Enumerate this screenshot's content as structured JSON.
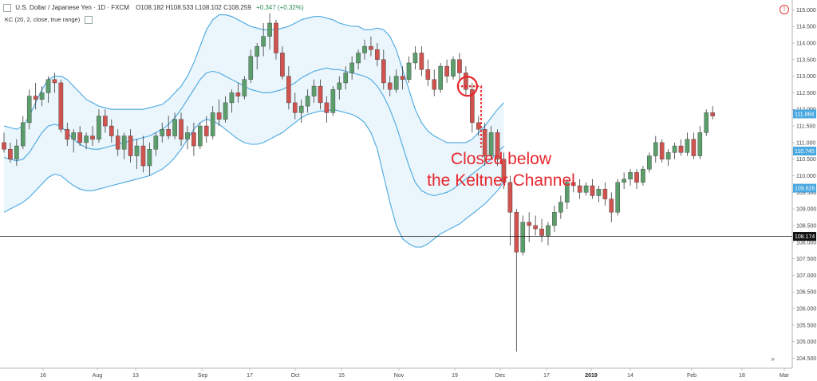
{
  "header": {
    "symbol": "U.S. Dollar / Japanese Yen · 1D · FXCM",
    "ohlc": "O108.182  H108.533  L108.102  C108.259",
    "change": "+0.347 (+0.32%)",
    "indicator": "KC (20, 2, close, true range)"
  },
  "annotation": {
    "line1": "Closed below",
    "line2": "the Keltner Channel"
  },
  "icons": [
    "chart-icon",
    "settings-icon",
    "info-icon",
    "scroll-right-icon"
  ],
  "colors": {
    "up": "#5b9e6b",
    "down": "#d0534f",
    "band": "#4aa8e0",
    "fill": "#eaf5fc",
    "annotation": "#e8272d",
    "current_price": "#111111"
  },
  "chart_data": {
    "type": "candlestick",
    "symbol": "USDJPY",
    "timeframe": "1D",
    "ylim": [
      104.2,
      115.2
    ],
    "y_ticks": [
      "115.000",
      "114.500",
      "114.000",
      "113.500",
      "113.000",
      "112.500",
      "112.000",
      "111.500",
      "111.000",
      "110.500",
      "110.000",
      "109.500",
      "109.000",
      "108.500",
      "108.000",
      "107.500",
      "107.000",
      "106.500",
      "106.000",
      "105.500",
      "105.000",
      "104.500"
    ],
    "x_labels": [
      "16",
      "Aug",
      "13",
      "Sep",
      "17",
      "Oct",
      "15",
      "Nov",
      "19",
      "Dec",
      "17",
      "2019",
      "14",
      "Feb",
      "18",
      "Mar"
    ],
    "price_labels": {
      "upper_band": "111.864",
      "middle_band": "110.745",
      "lower_band": "109.626",
      "last_price": "108.174"
    },
    "upper_band": [
      111.5,
      111.45,
      111.4,
      111.5,
      111.8,
      112.2,
      112.6,
      112.9,
      113.0,
      113.0,
      112.9,
      112.7,
      112.5,
      112.3,
      112.2,
      112.1,
      112.05,
      112.0,
      112.0,
      112.0,
      112.0,
      112.0,
      112.0,
      112.05,
      112.1,
      112.15,
      112.3,
      112.5,
      112.7,
      113.0,
      113.4,
      113.9,
      114.4,
      114.7,
      114.85,
      114.85,
      114.8,
      114.7,
      114.6,
      114.5,
      114.45,
      114.4,
      114.4,
      114.4,
      114.45,
      114.5,
      114.6,
      114.7,
      114.75,
      114.8,
      114.8,
      114.75,
      114.7,
      114.6,
      114.55,
      114.5,
      114.5,
      114.4,
      114.4,
      114.45,
      114.4,
      114.2,
      113.8,
      113.2,
      112.6,
      112.0,
      111.6,
      111.35,
      111.2,
      111.1,
      111.0,
      111.0,
      111.0,
      111.0,
      111.1,
      111.3,
      111.5,
      111.75,
      112.0,
      112.2
    ],
    "middle_band": [
      110.55,
      110.5,
      110.45,
      110.5,
      110.7,
      111.0,
      111.3,
      111.5,
      111.55,
      111.5,
      111.3,
      111.1,
      110.95,
      110.85,
      110.8,
      110.8,
      110.85,
      110.9,
      110.95,
      111.0,
      111.05,
      111.1,
      111.15,
      111.2,
      111.3,
      111.4,
      111.55,
      111.75,
      112.0,
      112.3,
      112.6,
      112.9,
      113.1,
      113.15,
      113.1,
      113.0,
      112.9,
      112.8,
      112.7,
      112.6,
      112.55,
      112.5,
      112.5,
      112.55,
      112.6,
      112.7,
      112.8,
      112.95,
      113.05,
      113.15,
      113.2,
      113.25,
      113.2,
      113.2,
      113.15,
      113.1,
      113.05,
      113.0,
      112.9,
      112.7,
      112.4,
      112.0,
      111.5,
      110.9,
      110.3,
      109.8,
      109.55,
      109.45,
      109.4,
      109.45,
      109.5,
      109.6,
      109.75,
      109.9,
      110.05,
      110.2,
      110.35,
      110.5,
      110.7,
      110.9
    ],
    "lower_band": [
      108.9,
      109.0,
      109.1,
      109.2,
      109.35,
      109.55,
      109.75,
      109.95,
      110.05,
      110.0,
      109.85,
      109.7,
      109.6,
      109.55,
      109.55,
      109.6,
      109.65,
      109.7,
      109.75,
      109.8,
      109.85,
      109.9,
      109.95,
      110.0,
      110.1,
      110.2,
      110.35,
      110.55,
      110.8,
      111.1,
      111.4,
      111.6,
      111.7,
      111.65,
      111.55,
      111.4,
      111.25,
      111.1,
      111.0,
      110.95,
      110.95,
      111.0,
      111.1,
      111.2,
      111.3,
      111.45,
      111.6,
      111.75,
      111.85,
      111.9,
      111.95,
      111.95,
      112.0,
      111.95,
      111.9,
      111.85,
      111.75,
      111.6,
      111.3,
      110.8,
      110.0,
      109.2,
      108.5,
      108.1,
      107.95,
      107.85,
      107.85,
      107.95,
      108.1,
      108.25,
      108.35,
      108.45,
      108.55,
      108.7,
      108.85,
      109.0,
      109.15,
      109.35,
      109.55,
      109.8
    ],
    "candles": [
      {
        "o": 111.0,
        "h": 111.3,
        "l": 110.7,
        "c": 110.8
      },
      {
        "o": 110.8,
        "h": 111.0,
        "l": 110.4,
        "c": 110.5
      },
      {
        "o": 110.5,
        "h": 111.1,
        "l": 110.3,
        "c": 110.9
      },
      {
        "o": 110.9,
        "h": 111.8,
        "l": 110.8,
        "c": 111.6
      },
      {
        "o": 111.6,
        "h": 112.6,
        "l": 111.4,
        "c": 112.4
      },
      {
        "o": 112.4,
        "h": 112.8,
        "l": 112.0,
        "c": 112.3
      },
      {
        "o": 112.3,
        "h": 112.7,
        "l": 112.1,
        "c": 112.5
      },
      {
        "o": 112.5,
        "h": 113.0,
        "l": 112.2,
        "c": 112.9
      },
      {
        "o": 112.9,
        "h": 113.1,
        "l": 112.5,
        "c": 112.8
      },
      {
        "o": 112.8,
        "h": 112.9,
        "l": 111.3,
        "c": 111.4
      },
      {
        "o": 111.4,
        "h": 111.6,
        "l": 110.9,
        "c": 111.1
      },
      {
        "o": 111.1,
        "h": 111.4,
        "l": 110.7,
        "c": 111.3
      },
      {
        "o": 111.3,
        "h": 111.5,
        "l": 110.9,
        "c": 111.0
      },
      {
        "o": 111.0,
        "h": 111.3,
        "l": 110.8,
        "c": 111.2
      },
      {
        "o": 111.2,
        "h": 111.5,
        "l": 110.9,
        "c": 111.1
      },
      {
        "o": 111.1,
        "h": 112.0,
        "l": 111.0,
        "c": 111.8
      },
      {
        "o": 111.8,
        "h": 112.0,
        "l": 111.3,
        "c": 111.5
      },
      {
        "o": 111.5,
        "h": 111.7,
        "l": 111.0,
        "c": 111.2
      },
      {
        "o": 111.2,
        "h": 111.4,
        "l": 110.6,
        "c": 110.8
      },
      {
        "o": 110.8,
        "h": 111.3,
        "l": 110.5,
        "c": 111.2
      },
      {
        "o": 111.2,
        "h": 111.4,
        "l": 110.4,
        "c": 110.6
      },
      {
        "o": 110.6,
        "h": 111.1,
        "l": 110.2,
        "c": 110.9
      },
      {
        "o": 110.9,
        "h": 111.2,
        "l": 110.1,
        "c": 110.3
      },
      {
        "o": 110.3,
        "h": 111.0,
        "l": 110.0,
        "c": 110.8
      },
      {
        "o": 110.8,
        "h": 111.3,
        "l": 110.6,
        "c": 111.2
      },
      {
        "o": 111.2,
        "h": 111.6,
        "l": 111.0,
        "c": 111.4
      },
      {
        "o": 111.4,
        "h": 111.8,
        "l": 111.1,
        "c": 111.2
      },
      {
        "o": 111.2,
        "h": 111.9,
        "l": 111.1,
        "c": 111.7
      },
      {
        "o": 111.7,
        "h": 111.9,
        "l": 110.9,
        "c": 111.1
      },
      {
        "o": 111.1,
        "h": 111.5,
        "l": 110.8,
        "c": 111.3
      },
      {
        "o": 111.3,
        "h": 111.6,
        "l": 110.6,
        "c": 110.9
      },
      {
        "o": 110.9,
        "h": 111.6,
        "l": 110.8,
        "c": 111.5
      },
      {
        "o": 111.5,
        "h": 111.8,
        "l": 111.0,
        "c": 111.2
      },
      {
        "o": 111.2,
        "h": 112.1,
        "l": 111.1,
        "c": 111.9
      },
      {
        "o": 111.9,
        "h": 112.3,
        "l": 111.5,
        "c": 111.7
      },
      {
        "o": 111.7,
        "h": 112.4,
        "l": 111.6,
        "c": 112.2
      },
      {
        "o": 112.2,
        "h": 112.6,
        "l": 111.9,
        "c": 112.5
      },
      {
        "o": 112.5,
        "h": 112.8,
        "l": 112.2,
        "c": 112.4
      },
      {
        "o": 112.4,
        "h": 113.0,
        "l": 112.3,
        "c": 112.9
      },
      {
        "o": 112.9,
        "h": 113.8,
        "l": 112.8,
        "c": 113.6
      },
      {
        "o": 113.6,
        "h": 114.0,
        "l": 113.2,
        "c": 113.9
      },
      {
        "o": 113.9,
        "h": 114.6,
        "l": 113.6,
        "c": 114.2
      },
      {
        "o": 114.2,
        "h": 114.9,
        "l": 113.8,
        "c": 114.6
      },
      {
        "o": 114.6,
        "h": 114.7,
        "l": 113.5,
        "c": 113.7
      },
      {
        "o": 113.7,
        "h": 113.9,
        "l": 112.9,
        "c": 113.0
      },
      {
        "o": 113.0,
        "h": 113.3,
        "l": 112.0,
        "c": 112.2
      },
      {
        "o": 112.2,
        "h": 112.5,
        "l": 111.7,
        "c": 111.9
      },
      {
        "o": 111.9,
        "h": 112.3,
        "l": 111.6,
        "c": 112.1
      },
      {
        "o": 112.1,
        "h": 112.6,
        "l": 111.9,
        "c": 112.4
      },
      {
        "o": 112.4,
        "h": 112.9,
        "l": 112.2,
        "c": 112.7
      },
      {
        "o": 112.7,
        "h": 112.9,
        "l": 112.0,
        "c": 112.2
      },
      {
        "o": 112.2,
        "h": 112.4,
        "l": 111.6,
        "c": 111.9
      },
      {
        "o": 111.9,
        "h": 112.7,
        "l": 111.8,
        "c": 112.6
      },
      {
        "o": 112.6,
        "h": 113.0,
        "l": 112.3,
        "c": 112.8
      },
      {
        "o": 112.8,
        "h": 113.3,
        "l": 112.6,
        "c": 113.1
      },
      {
        "o": 113.1,
        "h": 113.6,
        "l": 112.9,
        "c": 113.4
      },
      {
        "o": 113.4,
        "h": 113.8,
        "l": 113.2,
        "c": 113.7
      },
      {
        "o": 113.7,
        "h": 114.1,
        "l": 113.5,
        "c": 113.9
      },
      {
        "o": 113.9,
        "h": 114.2,
        "l": 113.6,
        "c": 113.8
      },
      {
        "o": 113.8,
        "h": 114.0,
        "l": 113.3,
        "c": 113.5
      },
      {
        "o": 113.5,
        "h": 113.8,
        "l": 112.6,
        "c": 112.8
      },
      {
        "o": 112.8,
        "h": 113.0,
        "l": 112.4,
        "c": 112.6
      },
      {
        "o": 112.6,
        "h": 113.2,
        "l": 112.5,
        "c": 113.0
      },
      {
        "o": 113.0,
        "h": 113.3,
        "l": 112.6,
        "c": 112.9
      },
      {
        "o": 112.9,
        "h": 113.6,
        "l": 112.8,
        "c": 113.4
      },
      {
        "o": 113.4,
        "h": 113.9,
        "l": 113.2,
        "c": 113.7
      },
      {
        "o": 113.7,
        "h": 113.9,
        "l": 113.0,
        "c": 113.2
      },
      {
        "o": 113.2,
        "h": 113.5,
        "l": 112.7,
        "c": 112.9
      },
      {
        "o": 112.9,
        "h": 113.2,
        "l": 112.4,
        "c": 112.6
      },
      {
        "o": 112.6,
        "h": 113.4,
        "l": 112.5,
        "c": 113.3
      },
      {
        "o": 113.3,
        "h": 113.5,
        "l": 112.8,
        "c": 113.0
      },
      {
        "o": 113.0,
        "h": 113.6,
        "l": 112.9,
        "c": 113.5
      },
      {
        "o": 113.5,
        "h": 113.7,
        "l": 112.9,
        "c": 113.1
      },
      {
        "o": 113.1,
        "h": 113.3,
        "l": 112.4,
        "c": 112.6
      },
      {
        "o": 112.6,
        "h": 112.8,
        "l": 111.3,
        "c": 111.6
      },
      {
        "o": 111.6,
        "h": 111.8,
        "l": 111.2,
        "c": 111.4
      },
      {
        "o": 111.4,
        "h": 111.6,
        "l": 110.3,
        "c": 110.6
      },
      {
        "o": 110.6,
        "h": 111.5,
        "l": 110.5,
        "c": 111.3
      },
      {
        "o": 111.3,
        "h": 111.4,
        "l": 110.3,
        "c": 110.5
      },
      {
        "o": 110.5,
        "h": 110.7,
        "l": 109.6,
        "c": 109.8
      },
      {
        "o": 109.8,
        "h": 110.0,
        "l": 107.9,
        "c": 108.9
      },
      {
        "o": 108.9,
        "h": 109.0,
        "l": 104.7,
        "c": 107.7
      },
      {
        "o": 107.7,
        "h": 108.8,
        "l": 107.6,
        "c": 108.6
      },
      {
        "o": 108.6,
        "h": 108.9,
        "l": 108.0,
        "c": 108.5
      },
      {
        "o": 108.5,
        "h": 108.8,
        "l": 108.2,
        "c": 108.4
      },
      {
        "o": 108.4,
        "h": 108.7,
        "l": 108.0,
        "c": 108.2
      },
      {
        "o": 108.2,
        "h": 108.6,
        "l": 107.9,
        "c": 108.5
      },
      {
        "o": 108.5,
        "h": 109.1,
        "l": 108.3,
        "c": 108.9
      },
      {
        "o": 108.9,
        "h": 109.4,
        "l": 108.7,
        "c": 109.2
      },
      {
        "o": 109.2,
        "h": 109.9,
        "l": 109.0,
        "c": 109.8
      },
      {
        "o": 109.8,
        "h": 110.0,
        "l": 109.5,
        "c": 109.7
      },
      {
        "o": 109.7,
        "h": 109.9,
        "l": 109.3,
        "c": 109.5
      },
      {
        "o": 109.5,
        "h": 109.8,
        "l": 109.4,
        "c": 109.7
      },
      {
        "o": 109.7,
        "h": 109.9,
        "l": 109.3,
        "c": 109.4
      },
      {
        "o": 109.4,
        "h": 109.7,
        "l": 109.2,
        "c": 109.6
      },
      {
        "o": 109.6,
        "h": 109.8,
        "l": 109.1,
        "c": 109.3
      },
      {
        "o": 109.3,
        "h": 109.5,
        "l": 108.6,
        "c": 108.9
      },
      {
        "o": 108.9,
        "h": 109.9,
        "l": 108.8,
        "c": 109.8
      },
      {
        "o": 109.8,
        "h": 110.1,
        "l": 109.6,
        "c": 109.9
      },
      {
        "o": 109.9,
        "h": 110.2,
        "l": 109.7,
        "c": 110.1
      },
      {
        "o": 110.1,
        "h": 110.2,
        "l": 109.6,
        "c": 109.8
      },
      {
        "o": 109.8,
        "h": 110.3,
        "l": 109.7,
        "c": 110.2
      },
      {
        "o": 110.2,
        "h": 110.7,
        "l": 110.1,
        "c": 110.6
      },
      {
        "o": 110.6,
        "h": 111.2,
        "l": 110.4,
        "c": 111.0
      },
      {
        "o": 111.0,
        "h": 111.1,
        "l": 110.4,
        "c": 110.5
      },
      {
        "o": 110.5,
        "h": 110.8,
        "l": 110.3,
        "c": 110.7
      },
      {
        "o": 110.7,
        "h": 111.0,
        "l": 110.5,
        "c": 110.9
      },
      {
        "o": 110.9,
        "h": 111.1,
        "l": 110.6,
        "c": 110.7
      },
      {
        "o": 110.7,
        "h": 111.3,
        "l": 110.6,
        "c": 111.1
      },
      {
        "o": 111.1,
        "h": 111.3,
        "l": 110.5,
        "c": 110.6
      },
      {
        "o": 110.6,
        "h": 111.5,
        "l": 110.5,
        "c": 111.3
      },
      {
        "o": 111.3,
        "h": 112.0,
        "l": 111.2,
        "c": 111.9
      },
      {
        "o": 111.9,
        "h": 112.1,
        "l": 111.7,
        "c": 111.8
      }
    ],
    "current_price_line": 108.174,
    "highlighted_candle_index": 73
  }
}
